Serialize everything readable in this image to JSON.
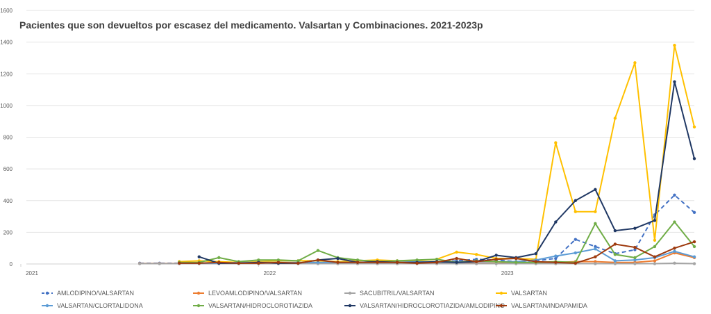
{
  "chart_data": {
    "type": "line",
    "title": "Pacientes que son devueltos por escasez del medicamento. Valsartan y Combinaciones. 2021-2023p",
    "xlabel": "",
    "ylabel": "",
    "ylim": [
      0,
      1600
    ],
    "yticks": [
      "0",
      "200",
      "400",
      "600",
      "800",
      "1000",
      "1200",
      "1400",
      "1600"
    ],
    "x_range": [
      1,
      35
    ],
    "xtick_labels": [
      {
        "x": 1,
        "label": "2021"
      },
      {
        "x": 13,
        "label": "2022"
      },
      {
        "x": 25,
        "label": "2023"
      }
    ],
    "grid": true,
    "legend_position": "bottom",
    "series": [
      {
        "name": "AMLODIPINO/VALSARTAN",
        "color": "#4472C4",
        "dash": true,
        "values": [
          5,
          5,
          5,
          5,
          5,
          5,
          5,
          8,
          5,
          8,
          5,
          8,
          5,
          10,
          8,
          10,
          20,
          30,
          25,
          15,
          20,
          35,
          155,
          110,
          65,
          90,
          310,
          435,
          325
        ]
      },
      {
        "name": "LEVOAMLODIPINO/VALSARTAN",
        "color": "#ED7D31",
        "dash": false,
        "values": [
          3,
          3,
          3,
          3,
          3,
          3,
          3,
          3,
          3,
          3,
          3,
          3,
          3,
          3,
          3,
          3,
          3,
          5,
          5,
          3,
          5,
          10,
          15,
          15,
          10,
          10,
          20,
          70,
          40
        ]
      },
      {
        "name": "SACUBITRIL/VALSARTAN",
        "color": "#A5A5A5",
        "dash": false,
        "values": [
          2,
          2,
          2,
          2,
          2,
          2,
          2,
          2,
          2,
          2,
          2,
          2,
          2,
          2,
          2,
          2,
          2,
          2,
          2,
          2,
          2,
          2,
          2,
          2,
          2,
          2,
          2,
          5,
          2
        ]
      },
      {
        "name": "VALSARTAN",
        "color": "#FFC000",
        "dash": false,
        "values": [
          15,
          20,
          15,
          10,
          15,
          20,
          20,
          20,
          15,
          20,
          25,
          20,
          20,
          30,
          75,
          60,
          35,
          35,
          30,
          765,
          330,
          330,
          920,
          1270,
          150,
          1380,
          865
        ]
      },
      {
        "name": "VALSARTAN/CLORTALIDONA",
        "color": "#5B9BD5",
        "dash": false,
        "values": [
          5,
          5,
          5,
          10,
          10,
          10,
          10,
          10,
          10,
          10,
          10,
          10,
          15,
          10,
          15,
          15,
          15,
          15,
          25,
          50,
          70,
          95,
          20,
          25,
          40,
          80,
          45
        ]
      },
      {
        "name": "VALSARTAN/HIDROCLOROTIAZIDA",
        "color": "#70AD47",
        "dash": false,
        "values": [
          10,
          10,
          40,
          15,
          25,
          25,
          20,
          85,
          40,
          25,
          15,
          20,
          25,
          30,
          10,
          20,
          15,
          10,
          10,
          15,
          10,
          255,
          60,
          40,
          110,
          265,
          110
        ]
      },
      {
        "name": "VALSARTAN/HIDROCLOROTIAZIDA/AMLODIPINO",
        "color": "#203864",
        "dash": false,
        "values": [
          45,
          5,
          5,
          10,
          5,
          5,
          25,
          35,
          10,
          15,
          10,
          10,
          15,
          10,
          15,
          55,
          40,
          65,
          265,
          400,
          470,
          210,
          225,
          275,
          1150,
          665
        ]
      },
      {
        "name": "VALSARTAN/INDAPAMIDA",
        "color": "#9E3A0E",
        "dash": false,
        "values": [
          5,
          5,
          10,
          5,
          5,
          10,
          5,
          25,
          10,
          10,
          10,
          10,
          5,
          10,
          35,
          15,
          30,
          35,
          15,
          10,
          5,
          45,
          125,
          105,
          45,
          100,
          140
        ]
      }
    ]
  }
}
